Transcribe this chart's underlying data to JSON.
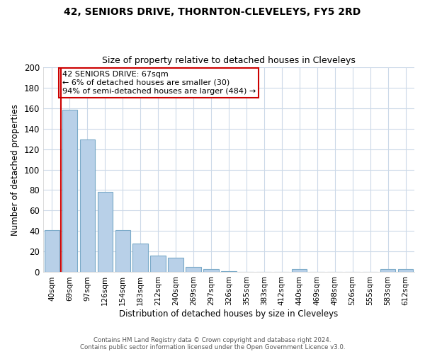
{
  "title": "42, SENIORS DRIVE, THORNTON-CLEVELEYS, FY5 2RD",
  "subtitle": "Size of property relative to detached houses in Cleveleys",
  "xlabel": "Distribution of detached houses by size in Cleveleys",
  "ylabel": "Number of detached properties",
  "bar_labels": [
    "40sqm",
    "69sqm",
    "97sqm",
    "126sqm",
    "154sqm",
    "183sqm",
    "212sqm",
    "240sqm",
    "269sqm",
    "297sqm",
    "326sqm",
    "355sqm",
    "383sqm",
    "412sqm",
    "440sqm",
    "469sqm",
    "498sqm",
    "526sqm",
    "555sqm",
    "583sqm",
    "612sqm"
  ],
  "bar_values": [
    41,
    158,
    129,
    78,
    41,
    28,
    16,
    14,
    5,
    3,
    1,
    0,
    0,
    0,
    3,
    0,
    0,
    0,
    0,
    3,
    3
  ],
  "bar_color": "#b8d0e8",
  "bar_edge_color": "#7aaac8",
  "vline_x": -0.5,
  "vline_color": "#cc0000",
  "annotation_text": "42 SENIORS DRIVE: 67sqm\n← 6% of detached houses are smaller (30)\n94% of semi-detached houses are larger (484) →",
  "annotation_box_color": "#ffffff",
  "annotation_box_edge": "#cc0000",
  "ylim": [
    0,
    200
  ],
  "yticks": [
    0,
    20,
    40,
    60,
    80,
    100,
    120,
    140,
    160,
    180,
    200
  ],
  "bg_color": "#ffffff",
  "grid_color": "#ccd9e8",
  "footer_line1": "Contains HM Land Registry data © Crown copyright and database right 2024.",
  "footer_line2": "Contains public sector information licensed under the Open Government Licence v3.0."
}
